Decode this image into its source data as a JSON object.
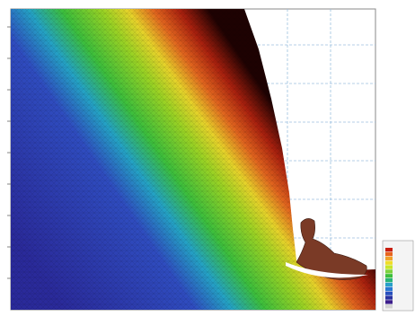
{
  "map": {
    "legend": {
      "colors": [
        "#c81e0f",
        "#e8641e",
        "#f0a028",
        "#f0dc28",
        "#c8e628",
        "#7cd23c",
        "#3cbe3c",
        "#28b478",
        "#28a0c8",
        "#2878d2",
        "#2850be",
        "#2832a0",
        "#3c1e8c",
        "#d2d2d2"
      ]
    }
  }
}
